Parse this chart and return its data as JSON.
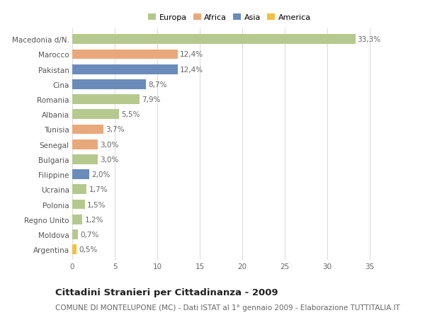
{
  "categories": [
    "Macedonia d/N.",
    "Marocco",
    "Pakistan",
    "Cina",
    "Romania",
    "Albania",
    "Tunisia",
    "Senegal",
    "Bulgaria",
    "Filippine",
    "Ucraina",
    "Polonia",
    "Regno Unito",
    "Moldova",
    "Argentina"
  ],
  "values": [
    33.3,
    12.4,
    12.4,
    8.7,
    7.9,
    5.5,
    3.7,
    3.0,
    3.0,
    2.0,
    1.7,
    1.5,
    1.2,
    0.7,
    0.5
  ],
  "labels": [
    "33,3%",
    "12,4%",
    "12,4%",
    "8,7%",
    "7,9%",
    "5,5%",
    "3,7%",
    "3,0%",
    "3,0%",
    "2,0%",
    "1,7%",
    "1,5%",
    "1,2%",
    "0,7%",
    "0,5%"
  ],
  "colors": [
    "#b5c98e",
    "#e8a87c",
    "#6b8cba",
    "#6b8cba",
    "#b5c98e",
    "#b5c98e",
    "#e8a87c",
    "#e8a87c",
    "#b5c98e",
    "#6b8cba",
    "#b5c98e",
    "#b5c98e",
    "#b5c98e",
    "#b5c98e",
    "#f0c040"
  ],
  "legend_labels": [
    "Europa",
    "Africa",
    "Asia",
    "America"
  ],
  "legend_colors": [
    "#b5c98e",
    "#e8a87c",
    "#6b8cba",
    "#f0c040"
  ],
  "title": "Cittadini Stranieri per Cittadinanza - 2009",
  "subtitle": "COMUNE DI MONTELUPONE (MC) - Dati ISTAT al 1° gennaio 2009 - Elaborazione TUTTITALIA.IT",
  "xlim": [
    0,
    37
  ],
  "xticks": [
    0,
    5,
    10,
    15,
    20,
    25,
    30,
    35
  ],
  "background_color": "#ffffff",
  "grid_color": "#dddddd",
  "bar_height": 0.65,
  "label_fontsize": 7.5,
  "tick_fontsize": 7.5,
  "title_fontsize": 9.5,
  "subtitle_fontsize": 7.5
}
